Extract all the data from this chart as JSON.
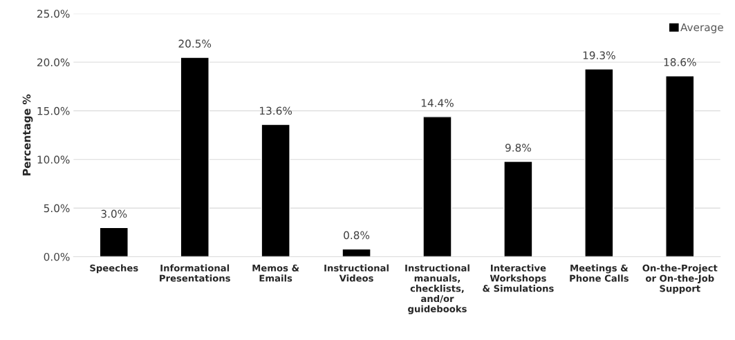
{
  "chart_data": {
    "type": "bar",
    "ylabel": "Percentage %",
    "categories": [
      "Speeches",
      "Informational\nPresentations",
      "Memos &\nEmails",
      "Instructional\nVideos",
      "Instructional\nmanuals,\nchecklists,\nand/or\nguidebooks",
      "Interactive\nWorkshops\n& Simulations",
      "Meetings &\nPhone Calls",
      "On-the-Project\nor On-the-Job\nSupport"
    ],
    "series": [
      {
        "name": "Average",
        "color": "#000000",
        "values": [
          3.0,
          20.5,
          13.6,
          0.8,
          14.4,
          9.8,
          19.3,
          18.6
        ],
        "value_labels": [
          "3.0%",
          "20.5%",
          "13.6%",
          "0.8%",
          "14.4%",
          "9.8%",
          "19.3%",
          "18.6%"
        ]
      }
    ],
    "ylim": [
      0,
      25
    ],
    "yticks": [
      {
        "value": 0,
        "label": "0.0%"
      },
      {
        "value": 5,
        "label": "5.0%"
      },
      {
        "value": 10,
        "label": "10.0%"
      },
      {
        "value": 15,
        "label": "15.0%"
      },
      {
        "value": 20,
        "label": "20.0%"
      },
      {
        "value": 25,
        "label": "25.0%"
      }
    ],
    "grid": "y",
    "legend": "top right"
  }
}
